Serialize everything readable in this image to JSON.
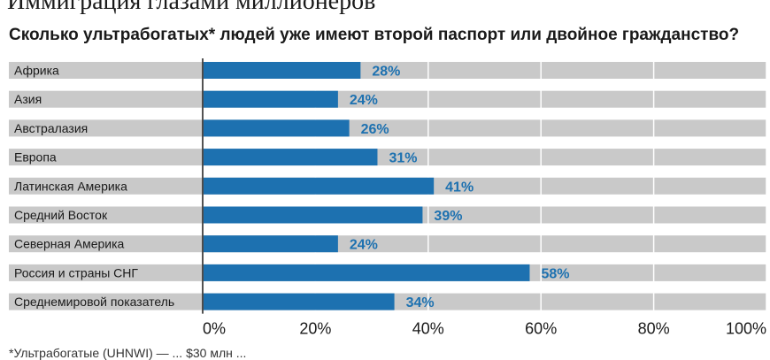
{
  "header": {
    "title": "Иммиграция глазами миллионеров",
    "subtitle": "Сколько ультрабогатых* людей уже имеют второй паспорт или двойное гражданство?"
  },
  "footnote": "*Ультрабогатые (UHNWI) — ... $30 млн ...",
  "chart_data": {
    "type": "bar",
    "orientation": "horizontal",
    "title": "Иммиграция глазами миллионеров",
    "subtitle": "Сколько ультрабогатых* людей уже имеют второй паспорт или двойное гражданство?",
    "categories": [
      "Африка",
      "Азия",
      "Австралазия",
      "Европа",
      "Латинская Америка",
      "Средний Восток",
      "Северная Америка",
      "Россия и страны СНГ",
      "Среднемировой показатель"
    ],
    "values": [
      28,
      24,
      26,
      31,
      41,
      39,
      24,
      58,
      34
    ],
    "value_labels": [
      "28%",
      "24%",
      "26%",
      "31%",
      "41%",
      "39%",
      "24%",
      "58%",
      "34%"
    ],
    "xlim": [
      0,
      100
    ],
    "x_ticks": [
      0,
      20,
      40,
      60,
      80,
      100
    ],
    "x_tick_labels": [
      "0%",
      "20%",
      "40%",
      "60%",
      "80%",
      "100%"
    ],
    "xlabel": "",
    "ylabel": "",
    "grid": true,
    "colors": {
      "bar": "#1d71b0",
      "track": "#c9c9c9",
      "value_label": "#1d71b0",
      "gridline": "#ffffff"
    }
  }
}
